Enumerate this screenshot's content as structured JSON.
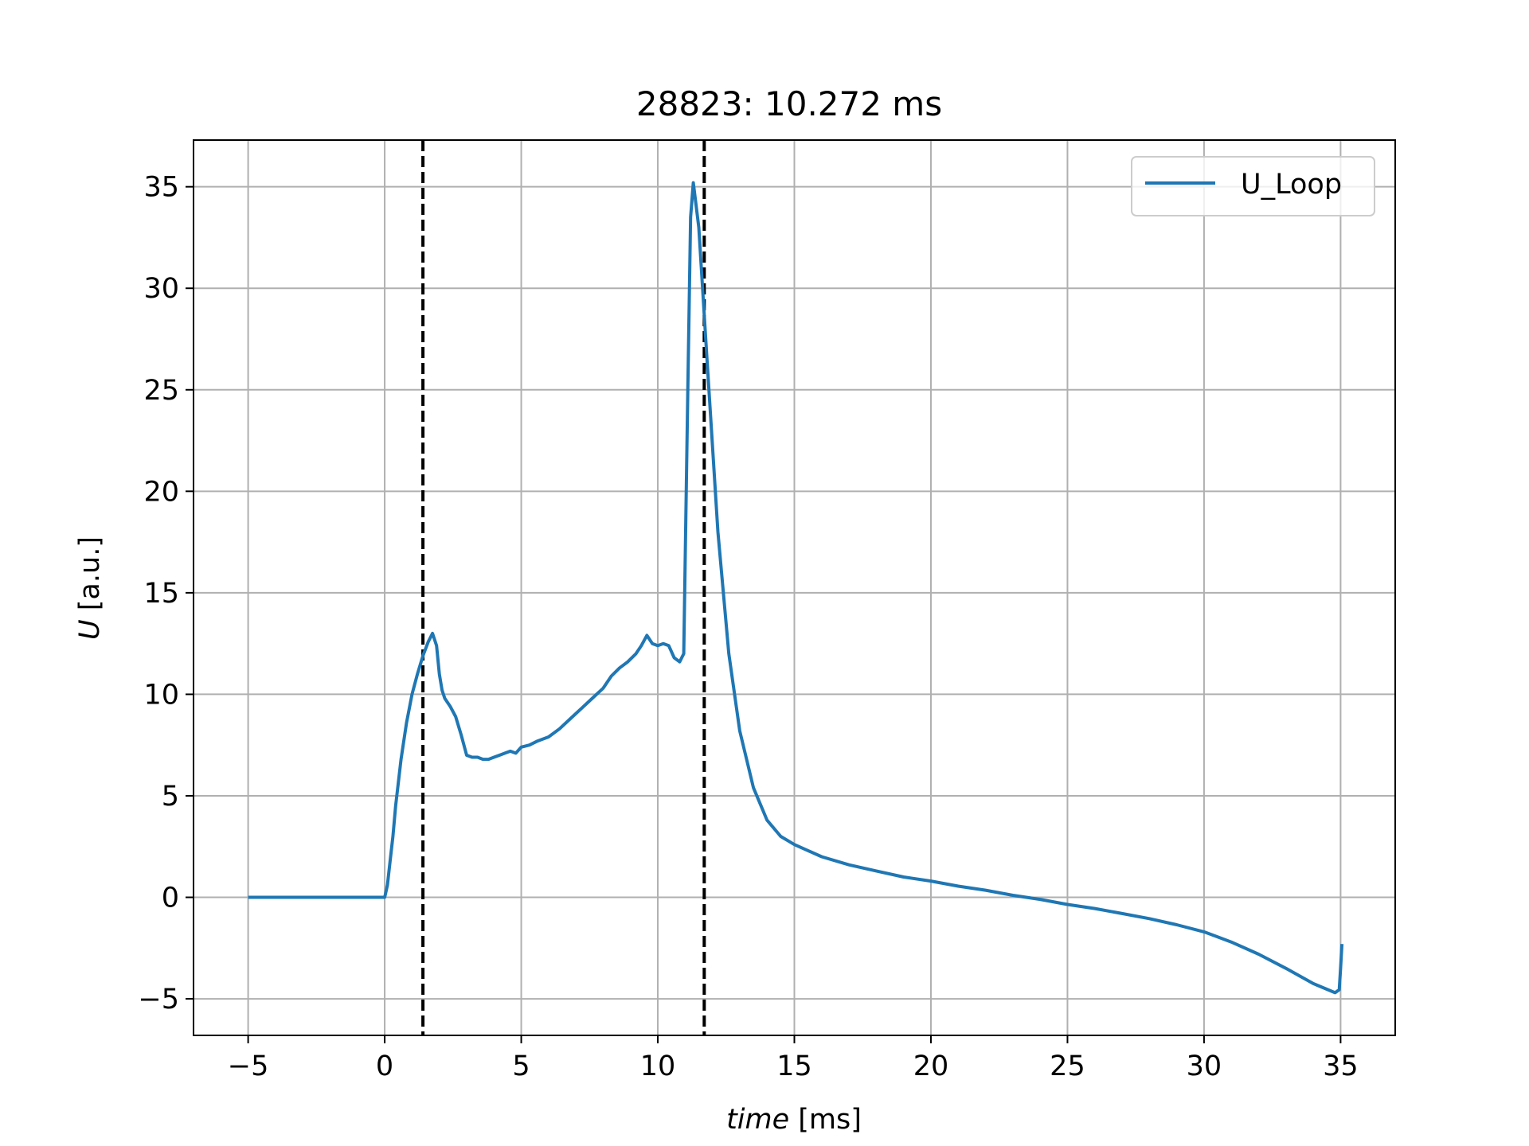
{
  "chart_data": {
    "type": "line",
    "title": "28823: 10.272 ms",
    "xlabel_italic": "time",
    "xlabel_unit": " [ms]",
    "ylabel_italic": "U",
    "ylabel_unit": " [a.u.]",
    "xlim": [
      -7,
      37
    ],
    "ylim": [
      -6.8,
      37.3
    ],
    "xticks": [
      -5,
      0,
      5,
      10,
      15,
      20,
      25,
      30,
      35
    ],
    "yticks": [
      -5,
      0,
      5,
      10,
      15,
      20,
      25,
      30,
      35
    ],
    "xtick_labels": [
      "−5",
      "0",
      "5",
      "10",
      "15",
      "20",
      "25",
      "30",
      "35"
    ],
    "ytick_labels": [
      "−5",
      "0",
      "5",
      "10",
      "15",
      "20",
      "25",
      "30",
      "35"
    ],
    "grid": true,
    "legend_position": "top-right",
    "vlines": [
      1.4,
      11.7
    ],
    "series": [
      {
        "name": "U_Loop",
        "color": "#1f77b4",
        "x": [
          -5,
          -2.5,
          -0.2,
          0.0,
          0.1,
          0.2,
          0.3,
          0.4,
          0.6,
          0.8,
          1.0,
          1.2,
          1.4,
          1.6,
          1.75,
          1.9,
          2.0,
          2.1,
          2.2,
          2.4,
          2.6,
          2.8,
          3.0,
          3.2,
          3.4,
          3.6,
          3.8,
          4.0,
          4.2,
          4.4,
          4.6,
          4.8,
          5.0,
          5.3,
          5.6,
          6.0,
          6.4,
          6.8,
          7.2,
          7.6,
          8.0,
          8.3,
          8.6,
          8.9,
          9.2,
          9.4,
          9.6,
          9.8,
          10.0,
          10.2,
          10.4,
          10.6,
          10.8,
          10.95,
          11.1,
          11.2,
          11.3,
          11.5,
          11.8,
          12.2,
          12.6,
          13.0,
          13.5,
          14.0,
          14.5,
          15.0,
          16.0,
          17.0,
          18.0,
          19.0,
          20.0,
          21.0,
          22.0,
          23.0,
          24.0,
          25.0,
          26.0,
          27.0,
          28.0,
          29.0,
          30.0,
          31.0,
          32.0,
          33.0,
          34.0,
          34.8,
          34.95,
          35.0,
          35.05
        ],
        "y": [
          0.0,
          0.0,
          0.0,
          0.0,
          0.6,
          1.8,
          3.0,
          4.5,
          6.8,
          8.6,
          10.0,
          11.0,
          11.9,
          12.6,
          13.0,
          12.4,
          11.0,
          10.2,
          9.8,
          9.4,
          8.9,
          8.0,
          7.0,
          6.9,
          6.9,
          6.8,
          6.8,
          6.9,
          7.0,
          7.1,
          7.2,
          7.1,
          7.4,
          7.5,
          7.7,
          7.9,
          8.3,
          8.8,
          9.3,
          9.8,
          10.3,
          10.9,
          11.3,
          11.6,
          12.0,
          12.4,
          12.9,
          12.5,
          12.4,
          12.5,
          12.4,
          11.8,
          11.6,
          12.0,
          25.0,
          33.5,
          35.2,
          33.0,
          26.5,
          18.0,
          12.0,
          8.2,
          5.4,
          3.8,
          3.0,
          2.6,
          2.0,
          1.6,
          1.3,
          1.0,
          0.8,
          0.55,
          0.35,
          0.1,
          -0.1,
          -0.35,
          -0.55,
          -0.8,
          -1.05,
          -1.35,
          -1.7,
          -2.2,
          -2.8,
          -3.5,
          -4.25,
          -4.7,
          -4.55,
          -3.5,
          -2.3
        ]
      }
    ]
  }
}
